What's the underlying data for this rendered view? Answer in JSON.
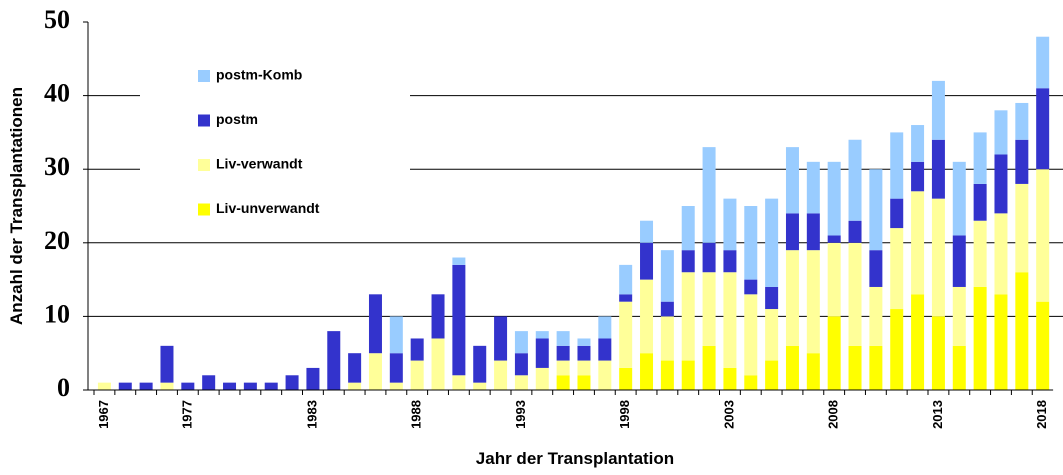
{
  "chart_data": {
    "type": "stacked_bar",
    "xlabel": "Jahr der Transplantation",
    "ylabel": "Anzahl der Transplantationen",
    "categories": [
      "1967",
      null,
      null,
      null,
      "1977",
      null,
      null,
      null,
      null,
      null,
      "1983",
      null,
      null,
      null,
      null,
      "1988",
      null,
      null,
      null,
      null,
      "1993",
      null,
      null,
      null,
      null,
      "1998",
      null,
      null,
      null,
      null,
      "2003",
      null,
      null,
      null,
      null,
      "2008",
      null,
      null,
      null,
      null,
      "2013",
      null,
      null,
      null,
      null,
      "2018"
    ],
    "series": [
      {
        "name": "Liv-unverwandt",
        "color": "#ffff00",
        "values": [
          0,
          0,
          0,
          0,
          0,
          0,
          0,
          0,
          0,
          0,
          0,
          0,
          0,
          0,
          0,
          0,
          0,
          0,
          0,
          0,
          0,
          0,
          2,
          2,
          0,
          3,
          5,
          4,
          4,
          6,
          3,
          2,
          4,
          6,
          5,
          10,
          6,
          6,
          11,
          13,
          10,
          6,
          14,
          13,
          16,
          12
        ]
      },
      {
        "name": "Liv-verwandt",
        "color": "#ffff99",
        "values": [
          1,
          0,
          0,
          1,
          0,
          0,
          0,
          0,
          0,
          0,
          0,
          0,
          1,
          5,
          1,
          4,
          7,
          2,
          1,
          4,
          2,
          3,
          2,
          2,
          4,
          9,
          10,
          6,
          12,
          10,
          13,
          11,
          7,
          13,
          14,
          10,
          14,
          8,
          11,
          14,
          16,
          8,
          9,
          11,
          12,
          18
        ]
      },
      {
        "name": "postm",
        "color": "#3333cc",
        "values": [
          0,
          1,
          1,
          5,
          1,
          2,
          1,
          1,
          1,
          2,
          3,
          8,
          4,
          8,
          4,
          3,
          6,
          15,
          5,
          6,
          3,
          4,
          2,
          2,
          3,
          1,
          5,
          2,
          3,
          4,
          3,
          2,
          3,
          5,
          5,
          1,
          3,
          5,
          4,
          4,
          8,
          7,
          5,
          8,
          6,
          11
        ]
      },
      {
        "name": "postm-Komb",
        "color": "#99ccff",
        "values": [
          0,
          0,
          0,
          0,
          0,
          0,
          0,
          0,
          0,
          0,
          0,
          0,
          0,
          0,
          5,
          0,
          0,
          1,
          0,
          0,
          3,
          1,
          2,
          1,
          3,
          4,
          3,
          7,
          6,
          13,
          7,
          10,
          12,
          9,
          7,
          10,
          11,
          11,
          9,
          5,
          8,
          10,
          7,
          6,
          5,
          7
        ]
      }
    ],
    "ylim": [
      0,
      50
    ],
    "yticks": [
      0,
      10,
      20,
      30,
      40,
      50
    ],
    "grid": true,
    "legend": "upper left"
  }
}
